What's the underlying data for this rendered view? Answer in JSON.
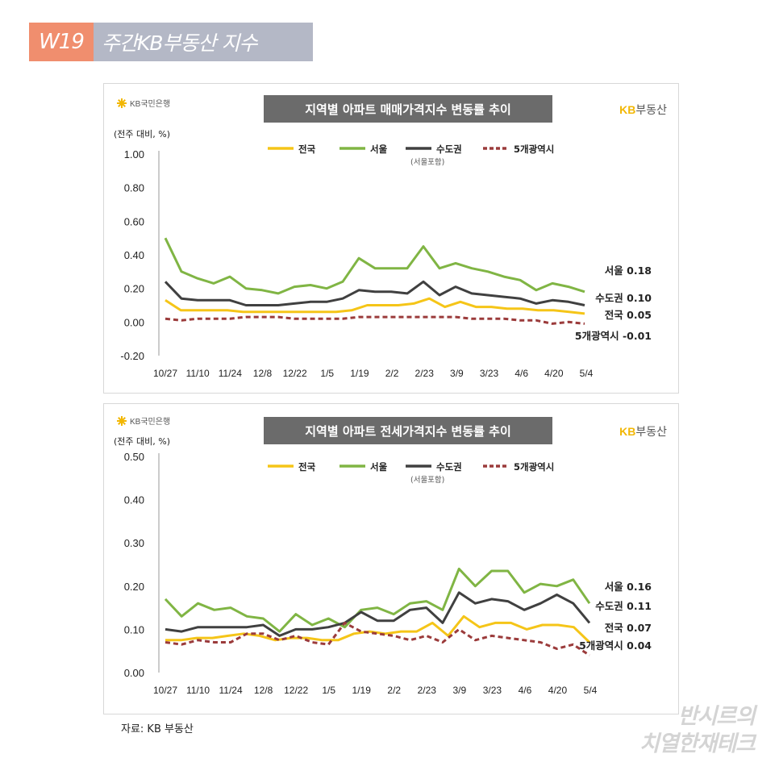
{
  "header": {
    "week": "W19",
    "title": "주간KB부동산 지수"
  },
  "source": "자료: KB 부동산",
  "watermark": {
    "line1": "반시르의",
    "line2": "치열한재테크"
  },
  "colors": {
    "national": "#f5c518",
    "seoul": "#80b544",
    "capital": "#404040",
    "metro5": "#9b3b3b"
  },
  "charts": [
    {
      "kb_bank_logo": "KB국민은행",
      "kb_realestate_logo": "KB부동산",
      "chart_data": {
        "type": "line",
        "title": "지역별 아파트 매매가격지수 변동률 추이",
        "ylabel": "(전주 대비, %)",
        "ylim": [
          -0.2,
          1.0
        ],
        "yticks": [
          "1.00",
          "0.80",
          "0.60",
          "0.40",
          "0.20",
          "0.00",
          "-0.20"
        ],
        "xtick_labels": [
          "10/27",
          "11/10",
          "11/24",
          "12/8",
          "12/22",
          "1/5",
          "1/19",
          "2/2",
          "2/23",
          "3/9",
          "3/23",
          "4/6",
          "4/20",
          "5/4"
        ],
        "legend": [
          "전국",
          "서울",
          "수도권",
          "5개광역시"
        ],
        "legend_note": "(서울포함)",
        "series": [
          {
            "name": "전국",
            "key": "national",
            "values": [
              0.13,
              0.07,
              0.07,
              0.07,
              0.07,
              0.06,
              0.06,
              0.06,
              0.06,
              0.06,
              0.06,
              0.06,
              0.07,
              0.1,
              0.1,
              0.1,
              0.11,
              0.14,
              0.09,
              0.12,
              0.09,
              0.09,
              0.08,
              0.08,
              0.07,
              0.07,
              0.06,
              0.05
            ]
          },
          {
            "name": "서울",
            "key": "seoul",
            "values": [
              0.5,
              0.3,
              0.26,
              0.23,
              0.27,
              0.2,
              0.19,
              0.17,
              0.21,
              0.22,
              0.2,
              0.24,
              0.38,
              0.32,
              0.32,
              0.32,
              0.45,
              0.32,
              0.35,
              0.32,
              0.3,
              0.27,
              0.25,
              0.19,
              0.23,
              0.21,
              0.18
            ]
          },
          {
            "name": "수도권",
            "key": "capital",
            "values": [
              0.24,
              0.14,
              0.13,
              0.13,
              0.13,
              0.1,
              0.1,
              0.1,
              0.11,
              0.12,
              0.12,
              0.14,
              0.19,
              0.18,
              0.18,
              0.17,
              0.24,
              0.16,
              0.21,
              0.17,
              0.16,
              0.15,
              0.14,
              0.11,
              0.13,
              0.12,
              0.1
            ]
          },
          {
            "name": "5개광역시",
            "key": "metro5",
            "values": [
              0.02,
              0.01,
              0.02,
              0.02,
              0.02,
              0.03,
              0.03,
              0.03,
              0.02,
              0.02,
              0.02,
              0.02,
              0.03,
              0.03,
              0.03,
              0.03,
              0.03,
              0.03,
              0.03,
              0.02,
              0.02,
              0.02,
              0.01,
              0.01,
              -0.01,
              0.0,
              -0.01
            ]
          }
        ],
        "end_labels": [
          {
            "key": "seoul",
            "text": "서울 0.18",
            "value": 0.18
          },
          {
            "key": "capital",
            "text": "수도권 0.10",
            "value": 0.1
          },
          {
            "key": "national",
            "text": "전국 0.05",
            "value": 0.05
          },
          {
            "key": "metro5",
            "text": "5개광역시 -0.01",
            "value": -0.01
          }
        ]
      }
    },
    {
      "kb_bank_logo": "KB국민은행",
      "kb_realestate_logo": "KB부동산",
      "chart_data": {
        "type": "line",
        "title": "지역별 아파트 전세가격지수 변동률 추이",
        "ylabel": "(전주 대비, %)",
        "ylim": [
          0.0,
          0.5
        ],
        "yticks": [
          "0.50",
          "0.40",
          "0.30",
          "0.20",
          "0.10",
          "0.00"
        ],
        "xtick_labels": [
          "10/27",
          "11/10",
          "11/24",
          "12/8",
          "12/22",
          "1/5",
          "1/19",
          "2/2",
          "2/23",
          "3/9",
          "3/23",
          "4/6",
          "4/20",
          "5/4"
        ],
        "legend": [
          "전국",
          "서울",
          "수도권",
          "5개광역시"
        ],
        "legend_note": "(서울포함)",
        "series": [
          {
            "name": "전국",
            "key": "national",
            "values": [
              0.075,
              0.075,
              0.08,
              0.08,
              0.085,
              0.09,
              0.085,
              0.075,
              0.08,
              0.08,
              0.075,
              0.075,
              0.09,
              0.095,
              0.09,
              0.095,
              0.095,
              0.115,
              0.085,
              0.13,
              0.105,
              0.115,
              0.115,
              0.1,
              0.11,
              0.11,
              0.105,
              0.07
            ]
          },
          {
            "name": "서울",
            "key": "seoul",
            "values": [
              0.17,
              0.13,
              0.16,
              0.145,
              0.15,
              0.13,
              0.125,
              0.095,
              0.135,
              0.11,
              0.125,
              0.105,
              0.145,
              0.15,
              0.135,
              0.16,
              0.165,
              0.145,
              0.24,
              0.2,
              0.235,
              0.235,
              0.185,
              0.205,
              0.2,
              0.215,
              0.16
            ]
          },
          {
            "name": "수도권",
            "key": "capital",
            "values": [
              0.1,
              0.095,
              0.105,
              0.105,
              0.105,
              0.105,
              0.11,
              0.085,
              0.1,
              0.1,
              0.105,
              0.115,
              0.14,
              0.12,
              0.12,
              0.145,
              0.15,
              0.115,
              0.185,
              0.16,
              0.17,
              0.165,
              0.145,
              0.16,
              0.18,
              0.16,
              0.115
            ]
          },
          {
            "name": "5개광역시",
            "key": "metro5",
            "values": [
              0.07,
              0.065,
              0.075,
              0.07,
              0.07,
              0.09,
              0.09,
              0.075,
              0.085,
              0.07,
              0.065,
              0.115,
              0.095,
              0.09,
              0.085,
              0.075,
              0.085,
              0.07,
              0.1,
              0.075,
              0.085,
              0.08,
              0.075,
              0.07,
              0.055,
              0.065,
              0.04
            ]
          }
        ],
        "end_labels": [
          {
            "key": "seoul",
            "text": "서울 0.16",
            "value": 0.16
          },
          {
            "key": "capital",
            "text": "수도권 0.11",
            "value": 0.11
          },
          {
            "key": "national",
            "text": "전국 0.07",
            "value": 0.07
          },
          {
            "key": "metro5",
            "text": "5개광역시 0.04",
            "value": 0.04
          }
        ]
      }
    }
  ]
}
